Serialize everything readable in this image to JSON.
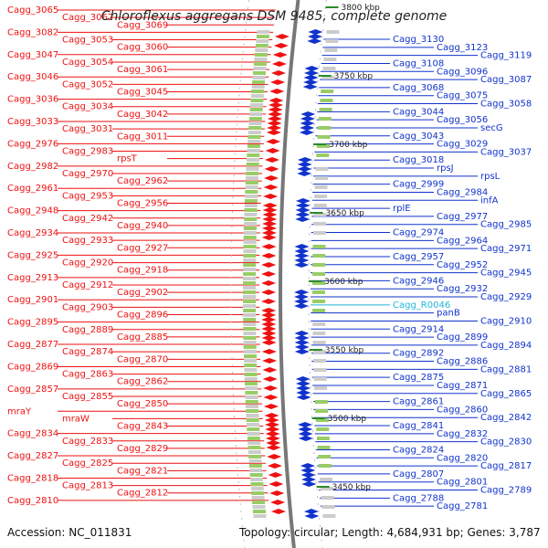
{
  "title": "Chloroflexus aggregans DSM 9485, complete genome",
  "accession": "Accession: NC_011831",
  "summary": "Topology: circular; Length: 4,684,931 bp; Genes: 3,787",
  "colors": {
    "reverse": "#ee1111",
    "forward": "#1133cc",
    "rna": "#22b5d9",
    "backbone": "#777777"
  },
  "ticks": [
    "3800 kbp",
    "3750 kbp",
    "3700 kbp",
    "3650 kbp",
    "3600 kbp",
    "3550 kbp",
    "3500 kbp",
    "3450 kbp"
  ],
  "left_labels": [
    "Cagg_3065",
    "Cagg_3062",
    "Cagg_3069",
    "Cagg_3082",
    "Cagg_3053",
    "Cagg_3060",
    "Cagg_3047",
    "Cagg_3054",
    "Cagg_3061",
    "Cagg_3046",
    "Cagg_3052",
    "Cagg_3045",
    "Cagg_3036",
    "Cagg_3034",
    "Cagg_3042",
    "Cagg_3033",
    "Cagg_3031",
    "Cagg_3011",
    "Cagg_2976",
    "Cagg_2983",
    "rpsT",
    "Cagg_2982",
    "Cagg_2970",
    "Cagg_2962",
    "Cagg_2961",
    "Cagg_2953",
    "Cagg_2956",
    "Cagg_2948",
    "Cagg_2942",
    "Cagg_2940",
    "Cagg_2934",
    "Cagg_2933",
    "Cagg_2927",
    "Cagg_2925",
    "Cagg_2920",
    "Cagg_2918",
    "Cagg_2913",
    "Cagg_2912",
    "Cagg_2902",
    "Cagg_2901",
    "Cagg_2903",
    "Cagg_2896",
    "Cagg_2895",
    "Cagg_2889",
    "Cagg_2885",
    "Cagg_2877",
    "Cagg_2874",
    "Cagg_2870",
    "Cagg_2869",
    "Cagg_2863",
    "Cagg_2862",
    "Cagg_2857",
    "Cagg_2855",
    "Cagg_2850",
    "mraY",
    "mraW",
    "Cagg_2843",
    "Cagg_2834",
    "Cagg_2833",
    "Cagg_2829",
    "Cagg_2827",
    "Cagg_2825",
    "Cagg_2821",
    "Cagg_2818",
    "Cagg_2813",
    "Cagg_2812",
    "Cagg_2810"
  ],
  "right_labels": [
    "Cagg_3130",
    "Cagg_3123",
    "Cagg_3119",
    "Cagg_3108",
    "Cagg_3096",
    "Cagg_3087",
    "Cagg_3068",
    "Cagg_3075",
    "Cagg_3058",
    "Cagg_3044",
    "Cagg_3056",
    "secG",
    "Cagg_3043",
    "Cagg_3029",
    "Cagg_3037",
    "Cagg_3018",
    "rpsJ",
    "rpsL",
    "Cagg_2999",
    "Cagg_2984",
    "infA",
    "rplE",
    "Cagg_2977",
    "Cagg_2985",
    "Cagg_2974",
    "Cagg_2964",
    "Cagg_2971",
    "Cagg_2957",
    "Cagg_2952",
    "Cagg_2945",
    "Cagg_2946",
    "Cagg_2932",
    "Cagg_2929",
    "Cagg_R0046",
    "panB",
    "Cagg_2910",
    "Cagg_2914",
    "Cagg_2899",
    "Cagg_2894",
    "Cagg_2892",
    "Cagg_2886",
    "Cagg_2881",
    "Cagg_2875",
    "Cagg_2871",
    "Cagg_2865",
    "Cagg_2861",
    "Cagg_2860",
    "Cagg_2842",
    "Cagg_2841",
    "Cagg_2832",
    "Cagg_2830",
    "Cagg_2824",
    "Cagg_2820",
    "Cagg_2817",
    "Cagg_2807",
    "Cagg_2801",
    "Cagg_2789",
    "Cagg_2788",
    "Cagg_2781"
  ]
}
